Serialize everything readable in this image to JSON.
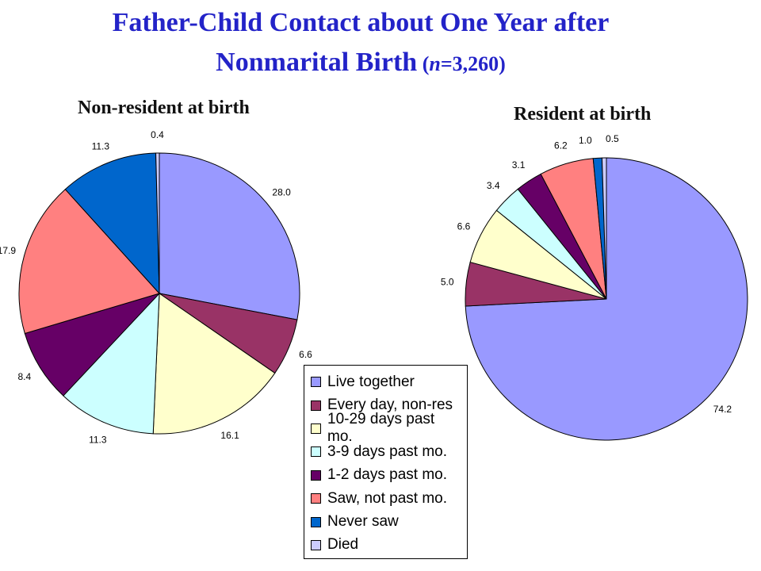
{
  "title": {
    "line1": "Father-Child Contact about One Year after",
    "line2_main": "Nonmarital Birth",
    "line2_paren_open": " (",
    "line2_n": "n",
    "line2_rest": "=3,260)"
  },
  "legend": [
    {
      "label": "Live together",
      "color": "#9999ff"
    },
    {
      "label": "Every day, non-res",
      "color": "#993366"
    },
    {
      "label": "10-29 days past mo.",
      "color": "#ffffcc"
    },
    {
      "label": "3-9 days past mo.",
      "color": "#ccffff"
    },
    {
      "label": "1-2 days past mo.",
      "color": "#660066"
    },
    {
      "label": "Saw, not past mo.",
      "color": "#ff8080"
    },
    {
      "label": "Never saw",
      "color": "#0066cc"
    },
    {
      "label": "Died",
      "color": "#ccccff"
    }
  ],
  "chart_data": [
    {
      "type": "pie",
      "title": "Non-resident at birth",
      "categories": [
        "Live together",
        "Every day, non-res",
        "10-29 days past mo.",
        "3-9 days past mo.",
        "1-2 days past mo.",
        "Saw, not past mo.",
        "Never saw",
        "Died"
      ],
      "values": [
        28.0,
        6.6,
        16.1,
        11.3,
        8.4,
        17.9,
        11.3,
        0.4
      ],
      "labels": [
        "28.0",
        "6.6",
        "16.1",
        "11.3",
        "8.4",
        "17.9",
        "11.3",
        "0.4"
      ]
    },
    {
      "type": "pie",
      "title": "Resident at birth",
      "categories": [
        "Live together",
        "Every day, non-res",
        "10-29 days past mo.",
        "3-9 days past mo.",
        "1-2 days past mo.",
        "Saw, not past mo.",
        "Never saw",
        "Died"
      ],
      "values": [
        74.2,
        5.0,
        6.6,
        3.4,
        3.1,
        6.2,
        1.0,
        0.5
      ],
      "labels": [
        "74.2",
        "5.0",
        "6.6",
        "3.4",
        "3.1",
        "6.2",
        "1.0",
        "0.5"
      ]
    }
  ]
}
